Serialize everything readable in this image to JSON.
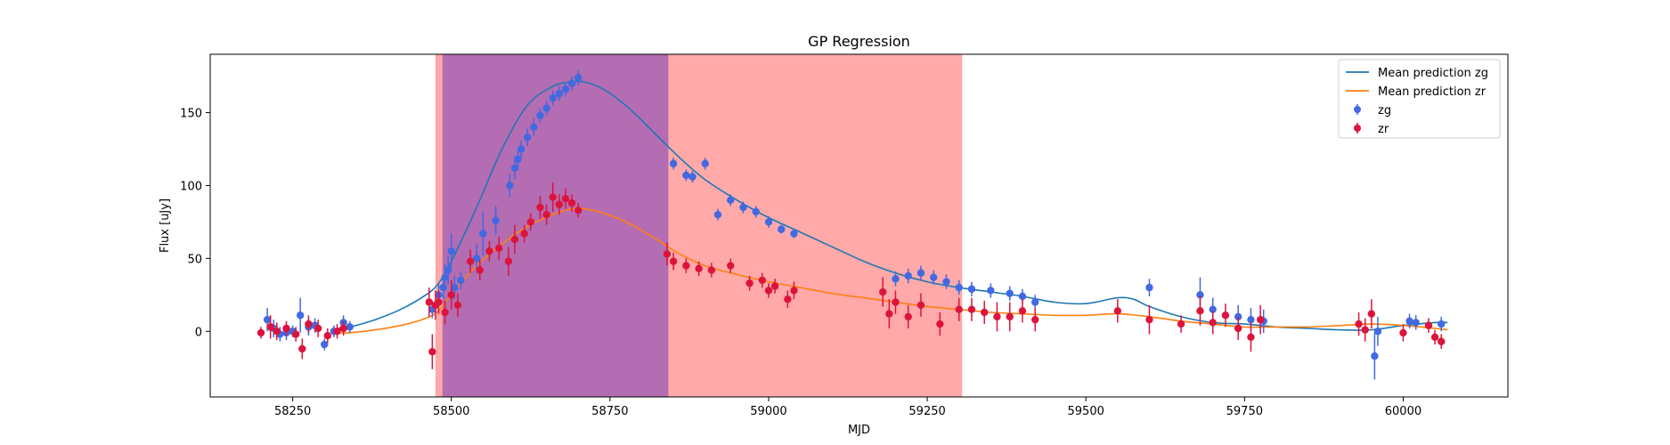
{
  "chart_data": {
    "type": "scatter",
    "title": "GP Regression",
    "xlabel": "MJD",
    "ylabel": "Flux [uJy]",
    "xlim": [
      58120,
      60165
    ],
    "ylim": [
      -45,
      190
    ],
    "xticks": [
      58250,
      58500,
      58750,
      59000,
      59250,
      59500,
      59750,
      60000
    ],
    "yticks": [
      0,
      50,
      100,
      150
    ],
    "grid": false,
    "legend_position": "upper right",
    "shaded_regions": [
      {
        "x0": 58475,
        "x1": 59305,
        "color": "#ff7070",
        "opacity": 0.6
      },
      {
        "x0": 58486,
        "x1": 58842,
        "color": "#9b59b6",
        "opacity": 0.75
      }
    ],
    "series": [
      {
        "name": "Mean prediction zg",
        "kind": "line",
        "color": "#1f77b4",
        "x": [
          58320,
          58340,
          58380,
          58420,
          58460,
          58480,
          58500,
          58540,
          58580,
          58620,
          58660,
          58690,
          58710,
          58740,
          58780,
          58820,
          58860,
          58900,
          58950,
          59000,
          59050,
          59100,
          59150,
          59200,
          59250,
          59300,
          59350,
          59400,
          59450,
          59500,
          59550,
          59575,
          59600,
          59650,
          59700,
          59750,
          59800,
          59850,
          59900,
          59950,
          60000,
          60050,
          60070
        ],
        "y": [
          2,
          3,
          8,
          15,
          25,
          33,
          48,
          85,
          125,
          155,
          168,
          171,
          171,
          166,
          153,
          136,
          119,
          104,
          90,
          78,
          68,
          58,
          48,
          40,
          34,
          30,
          27,
          24,
          20,
          19,
          23,
          22,
          17,
          10,
          6,
          5,
          3,
          2,
          1,
          1,
          4,
          6,
          6
        ]
      },
      {
        "name": "Mean prediction zr",
        "kind": "line",
        "color": "#ff7f0e",
        "x": [
          58320,
          58340,
          58380,
          58420,
          58460,
          58480,
          58500,
          58540,
          58580,
          58620,
          58660,
          58690,
          58710,
          58740,
          58780,
          58820,
          58860,
          58900,
          58950,
          59000,
          59050,
          59100,
          59150,
          59200,
          59250,
          59300,
          59350,
          59400,
          59450,
          59500,
          59550,
          59600,
          59650,
          59700,
          59750,
          59800,
          59850,
          59900,
          59950,
          60000,
          60050,
          60070
        ],
        "y": [
          -1,
          -1,
          1,
          4,
          9,
          14,
          25,
          45,
          60,
          72,
          80,
          84,
          84,
          81,
          74,
          64,
          53,
          45,
          39,
          34,
          30,
          26,
          23,
          20,
          17,
          15,
          13,
          12,
          11,
          11,
          12,
          10,
          7,
          5,
          3,
          3,
          3,
          4,
          5,
          4,
          2,
          1
        ]
      },
      {
        "name": "zg",
        "kind": "errorbar",
        "color": "#4169e1",
        "x": [
          58210,
          58220,
          58230,
          58240,
          58250,
          58262,
          58275,
          58285,
          58300,
          58315,
          58330,
          58340,
          58470,
          58480,
          58487,
          58490,
          58495,
          58500,
          58505,
          58515,
          58540,
          58550,
          58570,
          58592,
          58600,
          58605,
          58610,
          58620,
          58630,
          58640,
          58650,
          58660,
          58670,
          58680,
          58690,
          58700,
          58850,
          58870,
          58880,
          58900,
          58920,
          58940,
          58960,
          58980,
          59000,
          59020,
          59040,
          59200,
          59220,
          59240,
          59260,
          59280,
          59300,
          59320,
          59350,
          59380,
          59400,
          59420,
          59600,
          59680,
          59700,
          59740,
          59760,
          59780,
          59955,
          59960,
          60010,
          60020,
          60060
        ],
        "y": [
          8,
          2,
          -2,
          -1,
          0,
          11,
          3,
          4,
          -9,
          0,
          6,
          3,
          15,
          25,
          30,
          37,
          42,
          55,
          30,
          35,
          50,
          67,
          76,
          100,
          112,
          118,
          125,
          133,
          140,
          148,
          153,
          160,
          163,
          166,
          170,
          174,
          115,
          107,
          106,
          115,
          80,
          90,
          85,
          82,
          75,
          70,
          67,
          36,
          38,
          40,
          37,
          34,
          30,
          29,
          28,
          26,
          24,
          20,
          30,
          25,
          15,
          10,
          8,
          7,
          -17,
          0,
          7,
          6,
          5
        ],
        "err": [
          8,
          6,
          5,
          5,
          4,
          12,
          6,
          5,
          4,
          4,
          5,
          4,
          6,
          8,
          8,
          9,
          10,
          12,
          8,
          6,
          10,
          15,
          10,
          8,
          8,
          7,
          6,
          6,
          6,
          5,
          5,
          5,
          5,
          5,
          5,
          5,
          4,
          4,
          4,
          4,
          4,
          4,
          4,
          4,
          4,
          3,
          3,
          5,
          5,
          5,
          5,
          5,
          5,
          5,
          5,
          5,
          5,
          5,
          6,
          12,
          8,
          8,
          8,
          8,
          16,
          10,
          5,
          5,
          5
        ]
      },
      {
        "name": "zr",
        "kind": "errorbar",
        "color": "#dc143c",
        "x": [
          58200,
          58215,
          58225,
          58240,
          58255,
          58265,
          58275,
          58290,
          58305,
          58320,
          58330,
          58465,
          58470,
          58475,
          58480,
          58490,
          58500,
          58510,
          58530,
          58545,
          58560,
          58575,
          58590,
          58600,
          58615,
          58625,
          58640,
          58650,
          58660,
          58670,
          58680,
          58690,
          58700,
          58840,
          58850,
          58870,
          58890,
          58910,
          58940,
          58970,
          58990,
          59000,
          59010,
          59030,
          59040,
          59180,
          59190,
          59200,
          59220,
          59240,
          59270,
          59300,
          59320,
          59340,
          59360,
          59380,
          59400,
          59420,
          59550,
          59600,
          59650,
          59680,
          59700,
          59720,
          59740,
          59760,
          59775,
          59930,
          59940,
          59950,
          60000,
          60040,
          60050,
          60060
        ],
        "y": [
          -1,
          3,
          0,
          2,
          -2,
          -12,
          5,
          2,
          -3,
          0,
          2,
          20,
          -14,
          18,
          20,
          13,
          25,
          18,
          48,
          42,
          55,
          57,
          48,
          63,
          67,
          75,
          85,
          80,
          92,
          87,
          91,
          88,
          83,
          53,
          48,
          45,
          43,
          42,
          45,
          33,
          35,
          28,
          31,
          22,
          28,
          27,
          12,
          20,
          10,
          18,
          5,
          15,
          15,
          13,
          10,
          10,
          14,
          8,
          14,
          8,
          5,
          14,
          6,
          11,
          2,
          -4,
          8,
          5,
          1,
          12,
          -1,
          4,
          -4,
          -7
        ],
        "err": [
          4,
          8,
          6,
          5,
          5,
          7,
          6,
          6,
          5,
          5,
          5,
          10,
          12,
          10,
          8,
          8,
          10,
          8,
          8,
          7,
          7,
          8,
          10,
          10,
          6,
          6,
          8,
          7,
          10,
          7,
          7,
          6,
          5,
          8,
          6,
          5,
          5,
          5,
          5,
          5,
          5,
          5,
          5,
          6,
          6,
          10,
          10,
          8,
          8,
          8,
          8,
          8,
          8,
          8,
          10,
          10,
          8,
          8,
          8,
          10,
          6,
          10,
          8,
          8,
          8,
          10,
          10,
          8,
          8,
          10,
          6,
          5,
          5,
          5
        ]
      }
    ]
  }
}
